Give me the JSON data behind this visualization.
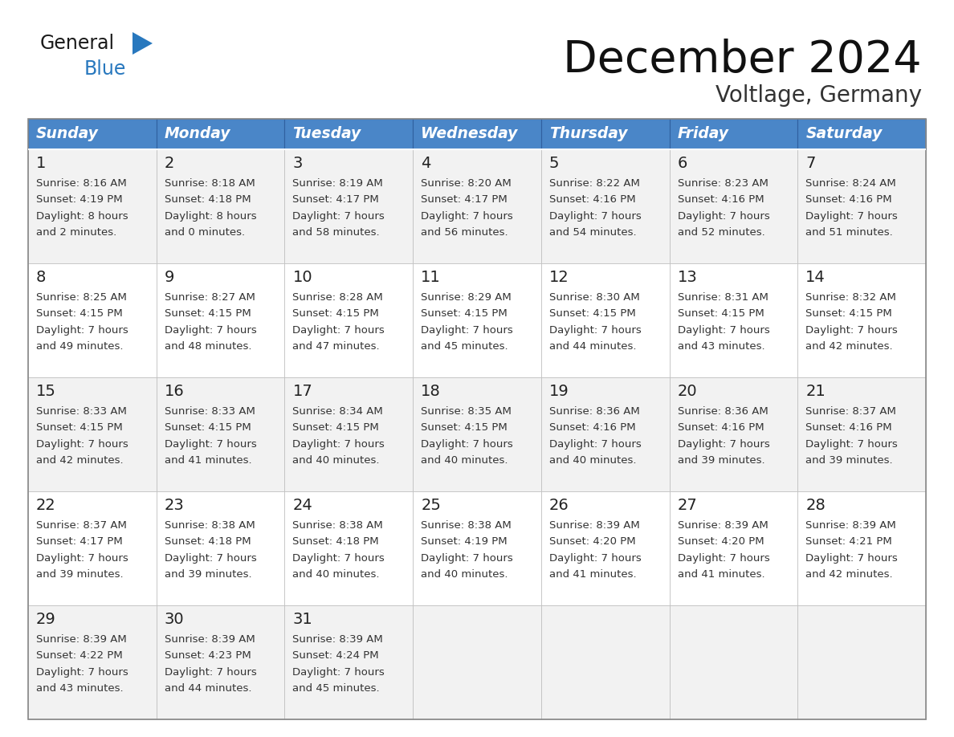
{
  "title": "December 2024",
  "subtitle": "Voltlage, Germany",
  "header_color": "#4a86c8",
  "header_text_color": "#FFFFFF",
  "day_names": [
    "Sunday",
    "Monday",
    "Tuesday",
    "Wednesday",
    "Thursday",
    "Friday",
    "Saturday"
  ],
  "bg_color": "#FFFFFF",
  "row_bg_odd": "#F2F2F2",
  "row_bg_even": "#FFFFFF",
  "cell_border_color": "#BBBBBB",
  "header_border_color": "#FFFFFF",
  "text_color": "#333333",
  "day_num_color": "#222222",
  "logo_text_color": "#1a1a1a",
  "logo_blue_color": "#2878BE",
  "logo_triangle_color": "#2878BE",
  "days": [
    {
      "day": 1,
      "col": 0,
      "row": 0,
      "sunrise": "8:16 AM",
      "sunset": "4:19 PM",
      "daylight": "8 hours",
      "daylight2": "and 2 minutes."
    },
    {
      "day": 2,
      "col": 1,
      "row": 0,
      "sunrise": "8:18 AM",
      "sunset": "4:18 PM",
      "daylight": "8 hours",
      "daylight2": "and 0 minutes."
    },
    {
      "day": 3,
      "col": 2,
      "row": 0,
      "sunrise": "8:19 AM",
      "sunset": "4:17 PM",
      "daylight": "7 hours",
      "daylight2": "and 58 minutes."
    },
    {
      "day": 4,
      "col": 3,
      "row": 0,
      "sunrise": "8:20 AM",
      "sunset": "4:17 PM",
      "daylight": "7 hours",
      "daylight2": "and 56 minutes."
    },
    {
      "day": 5,
      "col": 4,
      "row": 0,
      "sunrise": "8:22 AM",
      "sunset": "4:16 PM",
      "daylight": "7 hours",
      "daylight2": "and 54 minutes."
    },
    {
      "day": 6,
      "col": 5,
      "row": 0,
      "sunrise": "8:23 AM",
      "sunset": "4:16 PM",
      "daylight": "7 hours",
      "daylight2": "and 52 minutes."
    },
    {
      "day": 7,
      "col": 6,
      "row": 0,
      "sunrise": "8:24 AM",
      "sunset": "4:16 PM",
      "daylight": "7 hours",
      "daylight2": "and 51 minutes."
    },
    {
      "day": 8,
      "col": 0,
      "row": 1,
      "sunrise": "8:25 AM",
      "sunset": "4:15 PM",
      "daylight": "7 hours",
      "daylight2": "and 49 minutes."
    },
    {
      "day": 9,
      "col": 1,
      "row": 1,
      "sunrise": "8:27 AM",
      "sunset": "4:15 PM",
      "daylight": "7 hours",
      "daylight2": "and 48 minutes."
    },
    {
      "day": 10,
      "col": 2,
      "row": 1,
      "sunrise": "8:28 AM",
      "sunset": "4:15 PM",
      "daylight": "7 hours",
      "daylight2": "and 47 minutes."
    },
    {
      "day": 11,
      "col": 3,
      "row": 1,
      "sunrise": "8:29 AM",
      "sunset": "4:15 PM",
      "daylight": "7 hours",
      "daylight2": "and 45 minutes."
    },
    {
      "day": 12,
      "col": 4,
      "row": 1,
      "sunrise": "8:30 AM",
      "sunset": "4:15 PM",
      "daylight": "7 hours",
      "daylight2": "and 44 minutes."
    },
    {
      "day": 13,
      "col": 5,
      "row": 1,
      "sunrise": "8:31 AM",
      "sunset": "4:15 PM",
      "daylight": "7 hours",
      "daylight2": "and 43 minutes."
    },
    {
      "day": 14,
      "col": 6,
      "row": 1,
      "sunrise": "8:32 AM",
      "sunset": "4:15 PM",
      "daylight": "7 hours",
      "daylight2": "and 42 minutes."
    },
    {
      "day": 15,
      "col": 0,
      "row": 2,
      "sunrise": "8:33 AM",
      "sunset": "4:15 PM",
      "daylight": "7 hours",
      "daylight2": "and 42 minutes."
    },
    {
      "day": 16,
      "col": 1,
      "row": 2,
      "sunrise": "8:33 AM",
      "sunset": "4:15 PM",
      "daylight": "7 hours",
      "daylight2": "and 41 minutes."
    },
    {
      "day": 17,
      "col": 2,
      "row": 2,
      "sunrise": "8:34 AM",
      "sunset": "4:15 PM",
      "daylight": "7 hours",
      "daylight2": "and 40 minutes."
    },
    {
      "day": 18,
      "col": 3,
      "row": 2,
      "sunrise": "8:35 AM",
      "sunset": "4:15 PM",
      "daylight": "7 hours",
      "daylight2": "and 40 minutes."
    },
    {
      "day": 19,
      "col": 4,
      "row": 2,
      "sunrise": "8:36 AM",
      "sunset": "4:16 PM",
      "daylight": "7 hours",
      "daylight2": "and 40 minutes."
    },
    {
      "day": 20,
      "col": 5,
      "row": 2,
      "sunrise": "8:36 AM",
      "sunset": "4:16 PM",
      "daylight": "7 hours",
      "daylight2": "and 39 minutes."
    },
    {
      "day": 21,
      "col": 6,
      "row": 2,
      "sunrise": "8:37 AM",
      "sunset": "4:16 PM",
      "daylight": "7 hours",
      "daylight2": "and 39 minutes."
    },
    {
      "day": 22,
      "col": 0,
      "row": 3,
      "sunrise": "8:37 AM",
      "sunset": "4:17 PM",
      "daylight": "7 hours",
      "daylight2": "and 39 minutes."
    },
    {
      "day": 23,
      "col": 1,
      "row": 3,
      "sunrise": "8:38 AM",
      "sunset": "4:18 PM",
      "daylight": "7 hours",
      "daylight2": "and 39 minutes."
    },
    {
      "day": 24,
      "col": 2,
      "row": 3,
      "sunrise": "8:38 AM",
      "sunset": "4:18 PM",
      "daylight": "7 hours",
      "daylight2": "and 40 minutes."
    },
    {
      "day": 25,
      "col": 3,
      "row": 3,
      "sunrise": "8:38 AM",
      "sunset": "4:19 PM",
      "daylight": "7 hours",
      "daylight2": "and 40 minutes."
    },
    {
      "day": 26,
      "col": 4,
      "row": 3,
      "sunrise": "8:39 AM",
      "sunset": "4:20 PM",
      "daylight": "7 hours",
      "daylight2": "and 41 minutes."
    },
    {
      "day": 27,
      "col": 5,
      "row": 3,
      "sunrise": "8:39 AM",
      "sunset": "4:20 PM",
      "daylight": "7 hours",
      "daylight2": "and 41 minutes."
    },
    {
      "day": 28,
      "col": 6,
      "row": 3,
      "sunrise": "8:39 AM",
      "sunset": "4:21 PM",
      "daylight": "7 hours",
      "daylight2": "and 42 minutes."
    },
    {
      "day": 29,
      "col": 0,
      "row": 4,
      "sunrise": "8:39 AM",
      "sunset": "4:22 PM",
      "daylight": "7 hours",
      "daylight2": "and 43 minutes."
    },
    {
      "day": 30,
      "col": 1,
      "row": 4,
      "sunrise": "8:39 AM",
      "sunset": "4:23 PM",
      "daylight": "7 hours",
      "daylight2": "and 44 minutes."
    },
    {
      "day": 31,
      "col": 2,
      "row": 4,
      "sunrise": "8:39 AM",
      "sunset": "4:24 PM",
      "daylight": "7 hours",
      "daylight2": "and 45 minutes."
    }
  ]
}
